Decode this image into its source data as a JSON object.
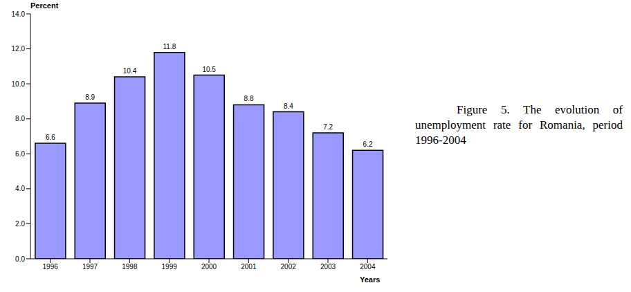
{
  "chart_data": {
    "type": "bar",
    "title": "Figure 5. The evolution of unemployment rate for Romania, period 1996-2004",
    "y_label": "Percent",
    "x_label": "Years",
    "categories": [
      "1996",
      "1997",
      "1998",
      "1999",
      "2000",
      "2001",
      "2002",
      "2003",
      "2004"
    ],
    "values": [
      6.6,
      8.9,
      10.4,
      11.8,
      10.5,
      8.8,
      8.4,
      7.2,
      6.2
    ],
    "color": "#9999ff",
    "ylim": [
      0,
      14
    ],
    "yticks": [
      {
        "value": 0,
        "label": "0.0"
      },
      {
        "value": 2,
        "label": "2.0"
      },
      {
        "value": 4,
        "label": "4.0"
      },
      {
        "value": 6,
        "label": "6.0"
      },
      {
        "value": 8,
        "label": "8.0"
      },
      {
        "value": 10,
        "label": "10.0"
      },
      {
        "value": 12,
        "label": "12.0"
      },
      {
        "value": 14,
        "label": "14.0"
      }
    ],
    "grid": false,
    "data_labels": true
  }
}
